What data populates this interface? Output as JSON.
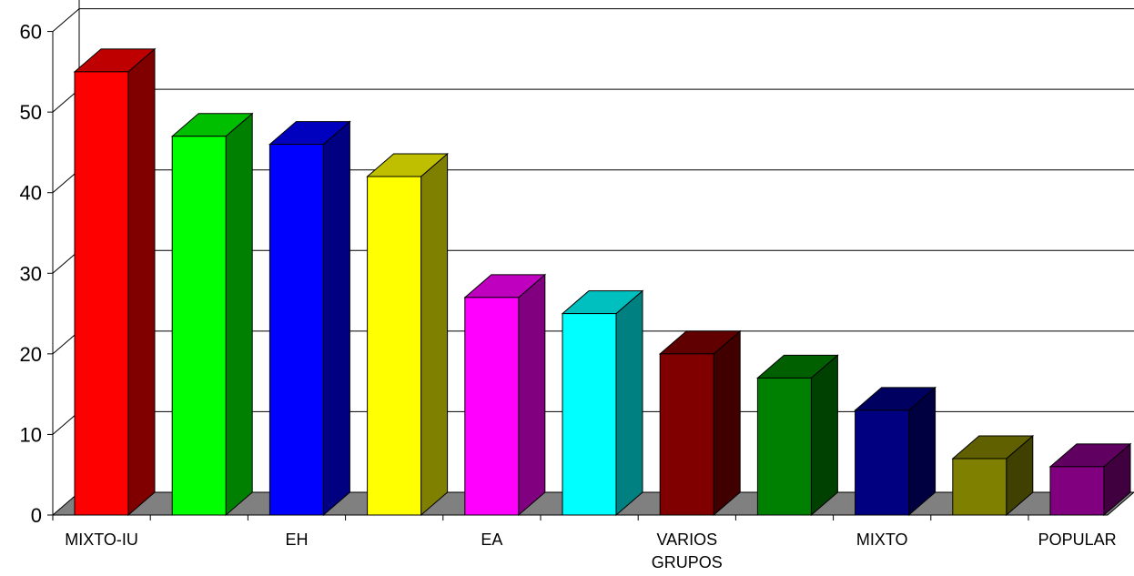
{
  "chart_data": {
    "type": "bar",
    "title": "",
    "xlabel": "",
    "ylabel": "",
    "ylim": [
      0,
      60
    ],
    "yticks": [
      0,
      10,
      20,
      30,
      40,
      50,
      60
    ],
    "grid": true,
    "style": "3d",
    "categories": [
      "MIXTO-IU",
      "",
      "EH",
      "",
      "EA",
      "",
      "VARIOS GRUPOS",
      "",
      "MIXTO",
      "",
      "POPULAR"
    ],
    "values": [
      55,
      47,
      46,
      42,
      27,
      25,
      20,
      17,
      13,
      7,
      6
    ],
    "colors": [
      "#ff0000",
      "#00ff00",
      "#0000ff",
      "#ffff00",
      "#ff00ff",
      "#00ffff",
      "#800000",
      "#008000",
      "#000080",
      "#808000",
      "#800080"
    ]
  }
}
